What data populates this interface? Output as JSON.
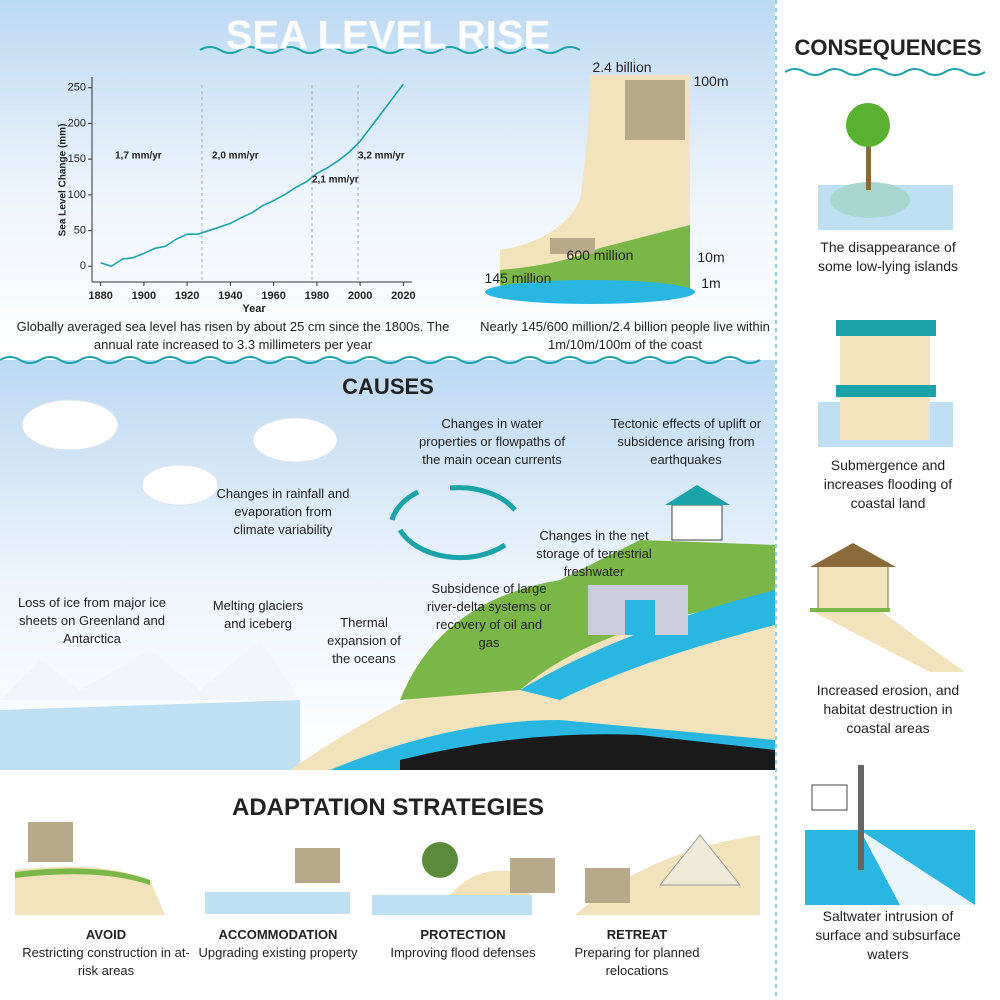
{
  "title": "SEA LEVEL RISE",
  "chart_data": {
    "type": "line",
    "y_label": "Sea Level Change (mm)",
    "x_label": "Year",
    "x": [
      1880,
      1885,
      1890,
      1895,
      1900,
      1905,
      1910,
      1915,
      1920,
      1925,
      1930,
      1935,
      1940,
      1945,
      1950,
      1955,
      1960,
      1965,
      1970,
      1975,
      1980,
      1985,
      1990,
      1995,
      2000,
      2005,
      2010,
      2015,
      2020
    ],
    "values": [
      5,
      0,
      10,
      12,
      18,
      25,
      28,
      38,
      45,
      45,
      50,
      55,
      60,
      68,
      75,
      85,
      92,
      100,
      110,
      118,
      130,
      138,
      148,
      160,
      175,
      195,
      215,
      235,
      255
    ],
    "color": "#1aa3a8",
    "xlim": [
      1876,
      2024
    ],
    "xticks": [
      1880,
      1900,
      1920,
      1940,
      1960,
      1980,
      2000,
      2020
    ],
    "ylim": [
      -15,
      265
    ],
    "yticks": [
      0,
      50,
      100,
      150,
      200,
      250
    ],
    "annotations": [
      "1,7 mm/yr",
      "2,0 mm/yr",
      "2,1 mm/yr",
      "3,2 mm/yr"
    ],
    "caption": "Globally averaged sea level has risen by about 25 cm since the 1800s. The annual rate increased to 3.3 millimeters per year"
  },
  "population": {
    "levels": [
      {
        "people": "2.4 billion",
        "elevation": "100m"
      },
      {
        "people": "600 million",
        "elevation": "10m"
      },
      {
        "people": "145 million",
        "elevation": "1m"
      }
    ],
    "caption": "Nearly 145/600 million/2.4 billion people live within 1m/10m/100m of the coast"
  },
  "causes": {
    "title": "CAUSES",
    "items": [
      "Changes in water properties or flowpaths of the main ocean currents",
      "Tectonic effects of uplift or subsidence arising from earthquakes",
      "Changes in rainfall and evaporation from climate variability",
      "Changes in the net storage of terrestrial freshwater",
      "Subsidence of large river-delta systems or recovery of oil and gas",
      "Loss of ice from major ice sheets on Greenland and Antarctica",
      "Melting glaciers and iceberg",
      "Thermal expansion of the oceans"
    ]
  },
  "adaptation": {
    "title": "ADAPTATION STRATEGIES",
    "strategies": [
      {
        "name": "AVOID",
        "description": "Restricting construction in at-risk areas"
      },
      {
        "name": "ACCOMMODATION",
        "description": "Upgrading existing property"
      },
      {
        "name": "PROTECTION",
        "description": "Improving flood defenses"
      },
      {
        "name": "RETREAT",
        "description": "Preparing for planned relocations"
      }
    ]
  },
  "consequences": {
    "title": "CONSEQUENCES",
    "items": [
      "The disappearance of some low-lying islands",
      "Submergence and increases flooding of coastal land",
      "Increased erosion, and habitat destruction in coastal areas",
      "Saltwater intrusion of surface and subsurface waters"
    ]
  }
}
